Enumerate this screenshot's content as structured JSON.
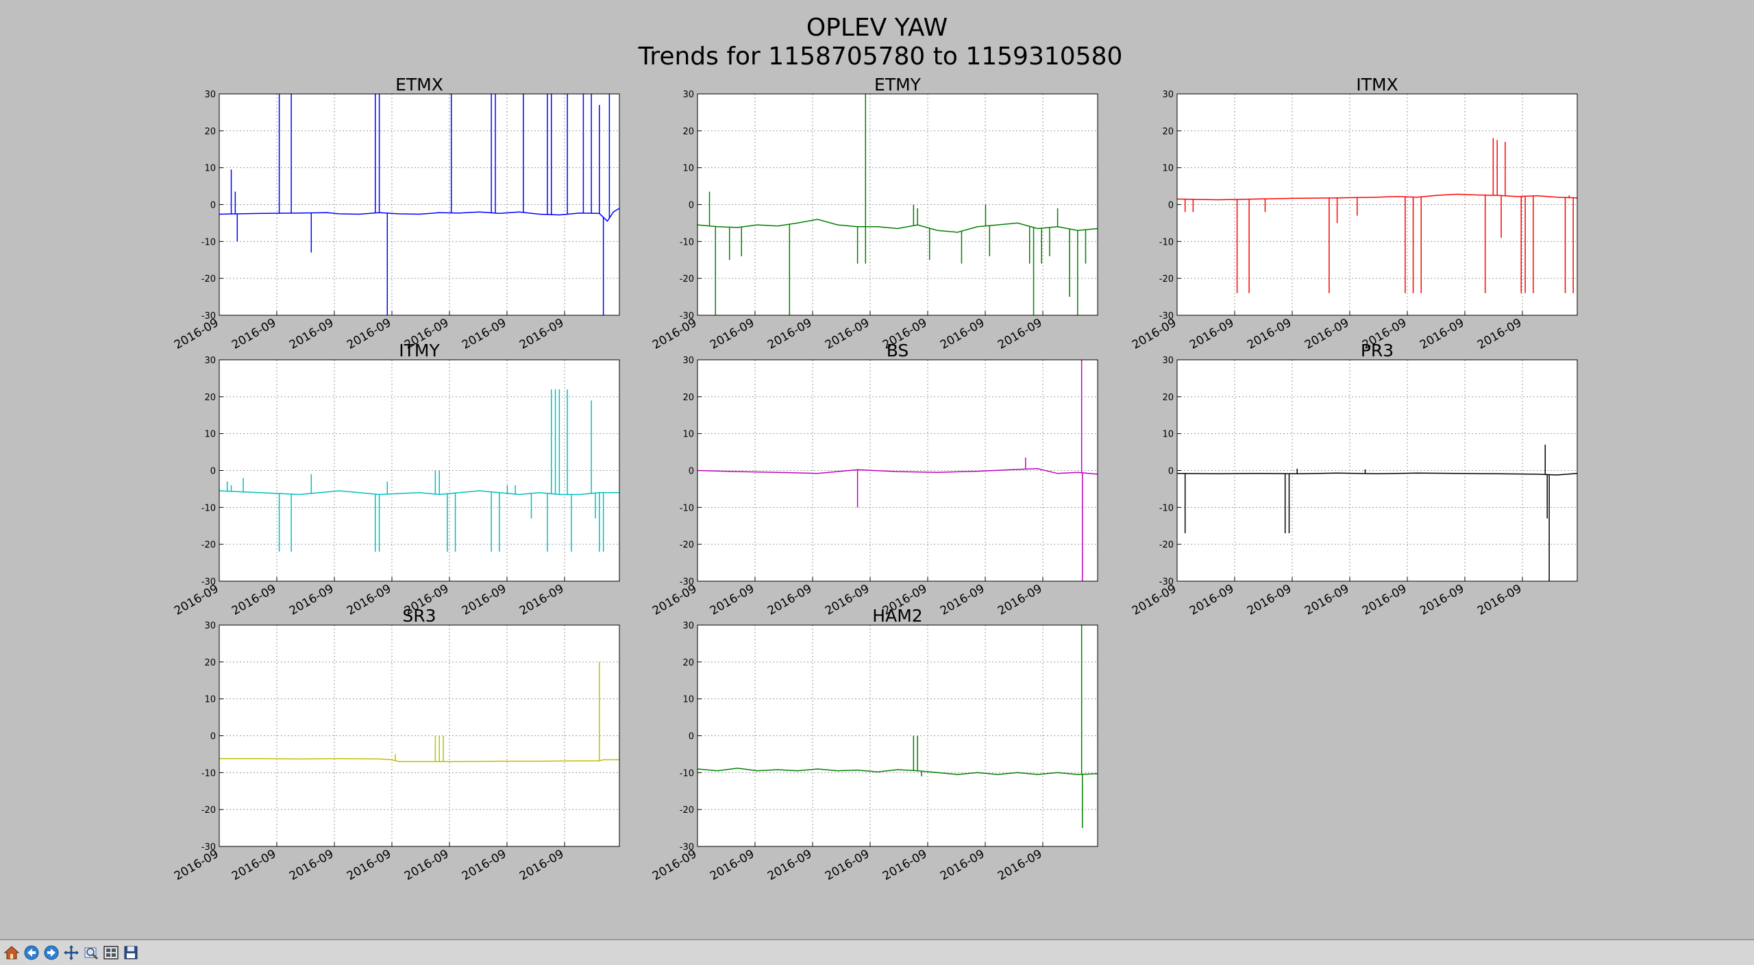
{
  "figure": {
    "title_line1": "OPLEV YAW",
    "title_line2": "Trends for 1158705780 to 1159310580"
  },
  "toolbar": {
    "buttons": [
      {
        "name": "home-icon"
      },
      {
        "name": "back-arrow-icon"
      },
      {
        "name": "forward-arrow-icon"
      },
      {
        "name": "pan-icon"
      },
      {
        "name": "zoom-icon"
      },
      {
        "name": "configure-subplots-icon"
      },
      {
        "name": "save-icon"
      }
    ]
  },
  "chart_data": [
    {
      "type": "line",
      "title": "ETMX",
      "color": "#0000ff",
      "ylim": [
        -30,
        30
      ],
      "yticks": [
        -30,
        -20,
        -10,
        0,
        10,
        20,
        30
      ],
      "xtick_labels": [
        "2016-09",
        "2016-09",
        "2016-09",
        "2016-09",
        "2016-09",
        "2016-09",
        "2016-09"
      ],
      "grid": true,
      "baseline": [
        [
          0,
          -2.6
        ],
        [
          0.1,
          -2.4
        ],
        [
          0.2,
          -2.3
        ],
        [
          0.27,
          -2.2
        ],
        [
          0.3,
          -2.5
        ],
        [
          0.35,
          -2.6
        ],
        [
          0.4,
          -2.2
        ],
        [
          0.45,
          -2.5
        ],
        [
          0.5,
          -2.6
        ],
        [
          0.55,
          -2.2
        ],
        [
          0.6,
          -2.3
        ],
        [
          0.65,
          -2.0
        ],
        [
          0.7,
          -2.4
        ],
        [
          0.75,
          -2.0
        ],
        [
          0.8,
          -2.6
        ],
        [
          0.85,
          -2.8
        ],
        [
          0.9,
          -2.3
        ],
        [
          0.95,
          -2.4
        ],
        [
          0.97,
          -4.5
        ],
        [
          0.985,
          -2.0
        ],
        [
          1.0,
          -1.0
        ]
      ],
      "spikes": [
        [
          0.03,
          9.5
        ],
        [
          0.04,
          3.5
        ],
        [
          0.045,
          -10
        ],
        [
          0.15,
          30
        ],
        [
          0.18,
          30
        ],
        [
          0.23,
          -13
        ],
        [
          0.39,
          30
        ],
        [
          0.4,
          30
        ],
        [
          0.42,
          -30
        ],
        [
          0.58,
          30
        ],
        [
          0.68,
          30
        ],
        [
          0.69,
          30
        ],
        [
          0.76,
          30
        ],
        [
          0.82,
          30
        ],
        [
          0.83,
          30
        ],
        [
          0.87,
          30
        ],
        [
          0.91,
          30
        ],
        [
          0.93,
          30
        ],
        [
          0.95,
          27
        ],
        [
          0.96,
          -30
        ],
        [
          0.975,
          30
        ]
      ]
    },
    {
      "type": "line",
      "title": "ETMY",
      "color": "#008000",
      "ylim": [
        -30,
        30
      ],
      "yticks": [
        -30,
        -20,
        -10,
        0,
        10,
        20,
        30
      ],
      "xtick_labels": [
        "2016-09",
        "2016-09",
        "2016-09",
        "2016-09",
        "2016-09",
        "2016-09",
        "2016-09"
      ],
      "grid": true,
      "baseline": [
        [
          0,
          -5.5
        ],
        [
          0.05,
          -6.0
        ],
        [
          0.1,
          -6.2
        ],
        [
          0.15,
          -5.5
        ],
        [
          0.2,
          -5.8
        ],
        [
          0.25,
          -5.0
        ],
        [
          0.3,
          -4.0
        ],
        [
          0.35,
          -5.5
        ],
        [
          0.4,
          -6.0
        ],
        [
          0.45,
          -6.0
        ],
        [
          0.5,
          -6.5
        ],
        [
          0.55,
          -5.5
        ],
        [
          0.6,
          -7.0
        ],
        [
          0.65,
          -7.5
        ],
        [
          0.7,
          -6.0
        ],
        [
          0.75,
          -5.5
        ],
        [
          0.8,
          -5.0
        ],
        [
          0.85,
          -6.5
        ],
        [
          0.9,
          -6.0
        ],
        [
          0.95,
          -7.0
        ],
        [
          1.0,
          -6.5
        ]
      ],
      "spikes": [
        [
          0.03,
          3.5
        ],
        [
          0.045,
          -30
        ],
        [
          0.08,
          -15
        ],
        [
          0.11,
          -14
        ],
        [
          0.23,
          -30
        ],
        [
          0.4,
          -16
        ],
        [
          0.42,
          -16
        ],
        [
          0.42,
          30
        ],
        [
          0.54,
          0
        ],
        [
          0.55,
          -1
        ],
        [
          0.58,
          -15
        ],
        [
          0.66,
          -16
        ],
        [
          0.72,
          0
        ],
        [
          0.73,
          -14
        ],
        [
          0.83,
          -16
        ],
        [
          0.84,
          -30
        ],
        [
          0.86,
          -16
        ],
        [
          0.88,
          -14
        ],
        [
          0.9,
          -1
        ],
        [
          0.93,
          -25
        ],
        [
          0.95,
          -30
        ],
        [
          0.97,
          -16
        ]
      ]
    },
    {
      "type": "line",
      "title": "ITMX",
      "color": "#ff0000",
      "ylim": [
        -30,
        30
      ],
      "yticks": [
        -30,
        -20,
        -10,
        0,
        10,
        20,
        30
      ],
      "xtick_labels": [
        "2016-09",
        "2016-09",
        "2016-09",
        "2016-09",
        "2016-09",
        "2016-09",
        "2016-09"
      ],
      "grid": true,
      "baseline": [
        [
          0,
          1.5
        ],
        [
          0.1,
          1.3
        ],
        [
          0.2,
          1.5
        ],
        [
          0.3,
          1.7
        ],
        [
          0.4,
          1.8
        ],
        [
          0.5,
          2.0
        ],
        [
          0.55,
          2.2
        ],
        [
          0.6,
          2.0
        ],
        [
          0.65,
          2.5
        ],
        [
          0.7,
          2.8
        ],
        [
          0.75,
          2.6
        ],
        [
          0.8,
          2.5
        ],
        [
          0.85,
          2.2
        ],
        [
          0.9,
          2.4
        ],
        [
          0.95,
          2.0
        ],
        [
          1.0,
          1.8
        ]
      ],
      "spikes": [
        [
          0.02,
          -2
        ],
        [
          0.04,
          -2
        ],
        [
          0.15,
          -24
        ],
        [
          0.18,
          -24
        ],
        [
          0.22,
          -2
        ],
        [
          0.38,
          -24
        ],
        [
          0.4,
          -5
        ],
        [
          0.45,
          -3
        ],
        [
          0.57,
          -24
        ],
        [
          0.59,
          -24
        ],
        [
          0.61,
          -24
        ],
        [
          0.77,
          -24
        ],
        [
          0.79,
          18
        ],
        [
          0.8,
          17.5
        ],
        [
          0.81,
          -9
        ],
        [
          0.82,
          17
        ],
        [
          0.86,
          -24
        ],
        [
          0.87,
          -24
        ],
        [
          0.89,
          -24
        ],
        [
          0.97,
          -24
        ],
        [
          0.98,
          2.5
        ],
        [
          0.99,
          -24
        ]
      ]
    },
    {
      "type": "line",
      "title": "ITMY",
      "color": "#00bfbf",
      "ylim": [
        -30,
        30
      ],
      "yticks": [
        -30,
        -20,
        -10,
        0,
        10,
        20,
        30
      ],
      "xtick_labels": [
        "2016-09",
        "2016-09",
        "2016-09",
        "2016-09",
        "2016-09",
        "2016-09",
        "2016-09"
      ],
      "grid": true,
      "baseline": [
        [
          0,
          -5.5
        ],
        [
          0.1,
          -6.0
        ],
        [
          0.2,
          -6.5
        ],
        [
          0.3,
          -5.5
        ],
        [
          0.4,
          -6.5
        ],
        [
          0.5,
          -6.0
        ],
        [
          0.55,
          -6.5
        ],
        [
          0.6,
          -6.0
        ],
        [
          0.65,
          -5.5
        ],
        [
          0.7,
          -6.0
        ],
        [
          0.75,
          -6.5
        ],
        [
          0.8,
          -6.0
        ],
        [
          0.85,
          -6.5
        ],
        [
          0.9,
          -6.5
        ],
        [
          0.95,
          -6.0
        ],
        [
          1.0,
          -6.0
        ]
      ],
      "spikes": [
        [
          0.02,
          -3
        ],
        [
          0.03,
          -4
        ],
        [
          0.06,
          -2
        ],
        [
          0.15,
          -22
        ],
        [
          0.18,
          -22
        ],
        [
          0.23,
          -1
        ],
        [
          0.39,
          -22
        ],
        [
          0.4,
          -22
        ],
        [
          0.42,
          -3
        ],
        [
          0.54,
          0
        ],
        [
          0.55,
          0
        ],
        [
          0.57,
          -22
        ],
        [
          0.59,
          -22
        ],
        [
          0.68,
          -22
        ],
        [
          0.7,
          -22
        ],
        [
          0.72,
          -4
        ],
        [
          0.74,
          -4
        ],
        [
          0.78,
          -13
        ],
        [
          0.82,
          -22
        ],
        [
          0.83,
          22
        ],
        [
          0.84,
          22
        ],
        [
          0.85,
          22
        ],
        [
          0.87,
          22
        ],
        [
          0.88,
          -22
        ],
        [
          0.93,
          19
        ],
        [
          0.94,
          -13
        ],
        [
          0.95,
          -22
        ],
        [
          0.96,
          -22
        ]
      ]
    },
    {
      "type": "line",
      "title": "BS",
      "color": "#bf00bf",
      "ylim": [
        -30,
        30
      ],
      "yticks": [
        -30,
        -20,
        -10,
        0,
        10,
        20,
        30
      ],
      "xtick_labels": [
        "2016-09",
        "2016-09",
        "2016-09",
        "2016-09",
        "2016-09",
        "2016-09",
        "2016-09"
      ],
      "grid": true,
      "baseline": [
        [
          0,
          0.0
        ],
        [
          0.1,
          -0.3
        ],
        [
          0.2,
          -0.5
        ],
        [
          0.3,
          -0.8
        ],
        [
          0.4,
          0.2
        ],
        [
          0.5,
          -0.3
        ],
        [
          0.6,
          -0.5
        ],
        [
          0.7,
          -0.2
        ],
        [
          0.8,
          0.3
        ],
        [
          0.85,
          0.5
        ],
        [
          0.9,
          -0.8
        ],
        [
          0.95,
          -0.5
        ],
        [
          1.0,
          -1.0
        ]
      ],
      "spikes": [
        [
          0.4,
          -10
        ],
        [
          0.82,
          3.5
        ],
        [
          0.96,
          30
        ],
        [
          0.962,
          -30
        ]
      ]
    },
    {
      "type": "line",
      "title": "PR3",
      "color": "#000000",
      "ylim": [
        -30,
        30
      ],
      "yticks": [
        -30,
        -20,
        -10,
        0,
        10,
        20,
        30
      ],
      "xtick_labels": [
        "2016-09",
        "2016-09",
        "2016-09",
        "2016-09",
        "2016-09",
        "2016-09",
        "2016-09"
      ],
      "grid": true,
      "baseline": [
        [
          0,
          -0.8
        ],
        [
          0.1,
          -0.9
        ],
        [
          0.2,
          -0.8
        ],
        [
          0.3,
          -0.9
        ],
        [
          0.4,
          -0.7
        ],
        [
          0.5,
          -0.9
        ],
        [
          0.6,
          -0.7
        ],
        [
          0.7,
          -0.8
        ],
        [
          0.8,
          -0.9
        ],
        [
          0.9,
          -1.0
        ],
        [
          0.95,
          -1.2
        ],
        [
          1.0,
          -0.8
        ]
      ],
      "spikes": [
        [
          0.02,
          -17
        ],
        [
          0.27,
          -17
        ],
        [
          0.28,
          -17
        ],
        [
          0.3,
          0.5
        ],
        [
          0.47,
          0.3
        ],
        [
          0.92,
          7
        ],
        [
          0.925,
          -13
        ],
        [
          0.93,
          -30
        ]
      ]
    },
    {
      "type": "line",
      "title": "SR3",
      "color": "#bfbf00",
      "ylim": [
        -30,
        30
      ],
      "yticks": [
        -30,
        -20,
        -10,
        0,
        10,
        20,
        30
      ],
      "xtick_labels": [
        "2016-09",
        "2016-09",
        "2016-09",
        "2016-09",
        "2016-09",
        "2016-09",
        "2016-09"
      ],
      "grid": true,
      "baseline": [
        [
          0,
          -6.2
        ],
        [
          0.1,
          -6.2
        ],
        [
          0.2,
          -6.3
        ],
        [
          0.3,
          -6.2
        ],
        [
          0.4,
          -6.3
        ],
        [
          0.43,
          -6.5
        ],
        [
          0.45,
          -7.0
        ],
        [
          0.5,
          -7.0
        ],
        [
          0.6,
          -7.0
        ],
        [
          0.7,
          -6.9
        ],
        [
          0.8,
          -6.9
        ],
        [
          0.9,
          -6.8
        ],
        [
          0.95,
          -6.8
        ],
        [
          0.96,
          -6.5
        ],
        [
          1.0,
          -6.5
        ]
      ],
      "spikes": [
        [
          0.44,
          -5
        ],
        [
          0.54,
          0
        ],
        [
          0.55,
          0
        ],
        [
          0.56,
          0
        ],
        [
          0.95,
          20
        ]
      ]
    },
    {
      "type": "line",
      "title": "HAM2",
      "color": "#008000",
      "ylim": [
        -30,
        30
      ],
      "yticks": [
        -30,
        -20,
        -10,
        0,
        10,
        20,
        30
      ],
      "xtick_labels": [
        "2016-09",
        "2016-09",
        "2016-09",
        "2016-09",
        "2016-09",
        "2016-09",
        "2016-09"
      ],
      "grid": true,
      "baseline": [
        [
          0,
          -9.0
        ],
        [
          0.05,
          -9.5
        ],
        [
          0.1,
          -8.8
        ],
        [
          0.15,
          -9.5
        ],
        [
          0.2,
          -9.2
        ],
        [
          0.25,
          -9.5
        ],
        [
          0.3,
          -9.0
        ],
        [
          0.35,
          -9.5
        ],
        [
          0.4,
          -9.3
        ],
        [
          0.45,
          -9.8
        ],
        [
          0.5,
          -9.2
        ],
        [
          0.55,
          -9.5
        ],
        [
          0.6,
          -10.0
        ],
        [
          0.65,
          -10.5
        ],
        [
          0.7,
          -10.0
        ],
        [
          0.75,
          -10.5
        ],
        [
          0.8,
          -10.0
        ],
        [
          0.85,
          -10.5
        ],
        [
          0.9,
          -10.0
        ],
        [
          0.95,
          -10.5
        ],
        [
          1.0,
          -10.3
        ]
      ],
      "spikes": [
        [
          0.54,
          0
        ],
        [
          0.55,
          0
        ],
        [
          0.56,
          -11
        ],
        [
          0.96,
          30
        ],
        [
          0.962,
          -25
        ]
      ]
    }
  ]
}
